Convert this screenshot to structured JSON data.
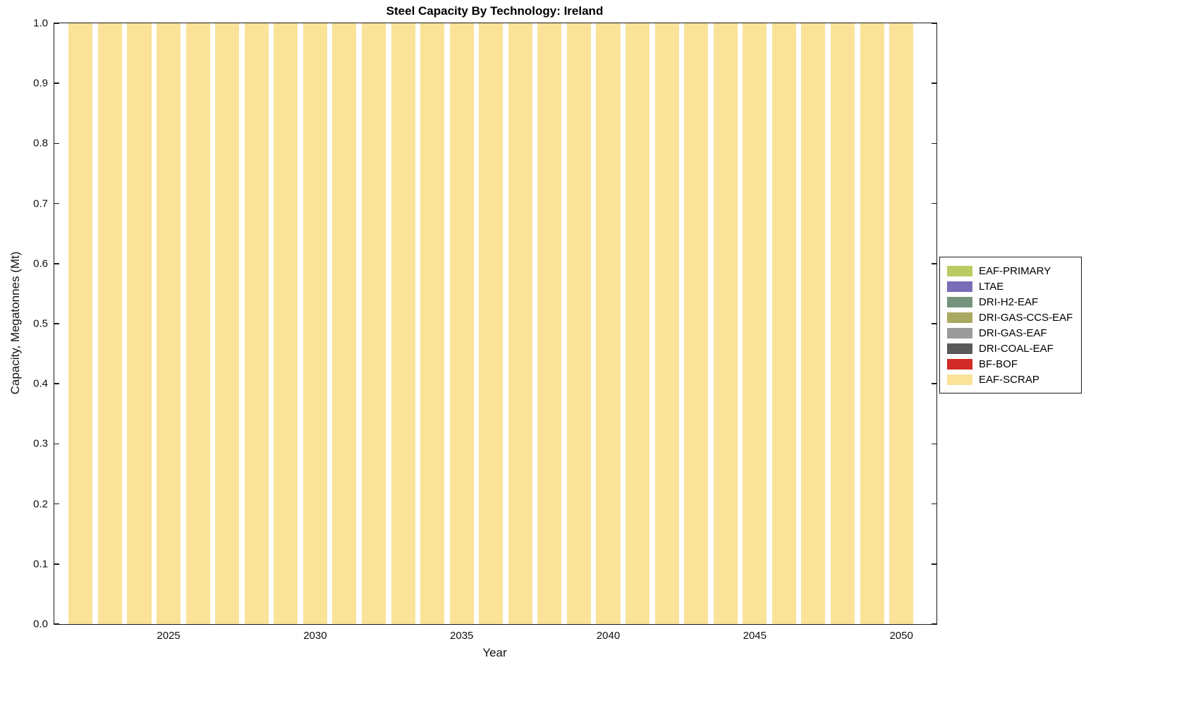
{
  "chart_data": {
    "type": "bar",
    "stacked": true,
    "title": "Steel Capacity By Technology: Ireland",
    "xlabel": "Year",
    "ylabel": "Capacity, Megatonnes (Mt)",
    "grid": false,
    "legend_position": "right-outside",
    "bar_width": 0.82,
    "xlim": [
      2021.1,
      2051.2
    ],
    "ylim": [
      0,
      1
    ],
    "x": [
      2022,
      2023,
      2024,
      2025,
      2026,
      2027,
      2028,
      2029,
      2030,
      2031,
      2032,
      2033,
      2034,
      2035,
      2036,
      2037,
      2038,
      2039,
      2040,
      2041,
      2042,
      2043,
      2044,
      2045,
      2046,
      2047,
      2048,
      2049,
      2050
    ],
    "xticks": [
      {
        "value": 2025,
        "label": "2025"
      },
      {
        "value": 2030,
        "label": "2030"
      },
      {
        "value": 2035,
        "label": "2035"
      },
      {
        "value": 2040,
        "label": "2040"
      },
      {
        "value": 2045,
        "label": "2045"
      },
      {
        "value": 2050,
        "label": "2050"
      }
    ],
    "yticks": [
      {
        "value": 0.0,
        "label": "0.0"
      },
      {
        "value": 0.1,
        "label": "0.1"
      },
      {
        "value": 0.2,
        "label": "0.2"
      },
      {
        "value": 0.3,
        "label": "0.3"
      },
      {
        "value": 0.4,
        "label": "0.4"
      },
      {
        "value": 0.5,
        "label": "0.5"
      },
      {
        "value": 0.6,
        "label": "0.6"
      },
      {
        "value": 0.7,
        "label": "0.7"
      },
      {
        "value": 0.8,
        "label": "0.8"
      },
      {
        "value": 0.9,
        "label": "0.9"
      },
      {
        "value": 1.0,
        "label": "1.0"
      }
    ],
    "series": [
      {
        "name": "EAF-PRIMARY",
        "color": "#b8cc63",
        "values": [
          0,
          0,
          0,
          0,
          0,
          0,
          0,
          0,
          0,
          0,
          0,
          0,
          0,
          0,
          0,
          0,
          0,
          0,
          0,
          0,
          0,
          0,
          0,
          0,
          0,
          0,
          0,
          0,
          0
        ]
      },
      {
        "name": "LTAE",
        "color": "#7a6db8",
        "values": [
          0,
          0,
          0,
          0,
          0,
          0,
          0,
          0,
          0,
          0,
          0,
          0,
          0,
          0,
          0,
          0,
          0,
          0,
          0,
          0,
          0,
          0,
          0,
          0,
          0,
          0,
          0,
          0,
          0
        ]
      },
      {
        "name": "DRI-H2-EAF",
        "color": "#74937c",
        "values": [
          0,
          0,
          0,
          0,
          0,
          0,
          0,
          0,
          0,
          0,
          0,
          0,
          0,
          0,
          0,
          0,
          0,
          0,
          0,
          0,
          0,
          0,
          0,
          0,
          0,
          0,
          0,
          0,
          0
        ]
      },
      {
        "name": "DRI-GAS-CCS-EAF",
        "color": "#aaa961",
        "values": [
          0,
          0,
          0,
          0,
          0,
          0,
          0,
          0,
          0,
          0,
          0,
          0,
          0,
          0,
          0,
          0,
          0,
          0,
          0,
          0,
          0,
          0,
          0,
          0,
          0,
          0,
          0,
          0,
          0
        ]
      },
      {
        "name": "DRI-GAS-EAF",
        "color": "#9a9a9a",
        "values": [
          0,
          0,
          0,
          0,
          0,
          0,
          0,
          0,
          0,
          0,
          0,
          0,
          0,
          0,
          0,
          0,
          0,
          0,
          0,
          0,
          0,
          0,
          0,
          0,
          0,
          0,
          0,
          0,
          0
        ]
      },
      {
        "name": "DRI-COAL-EAF",
        "color": "#595959",
        "values": [
          0,
          0,
          0,
          0,
          0,
          0,
          0,
          0,
          0,
          0,
          0,
          0,
          0,
          0,
          0,
          0,
          0,
          0,
          0,
          0,
          0,
          0,
          0,
          0,
          0,
          0,
          0,
          0,
          0
        ]
      },
      {
        "name": "BF-BOF",
        "color": "#d22b27",
        "values": [
          0,
          0,
          0,
          0,
          0,
          0,
          0,
          0,
          0,
          0,
          0,
          0,
          0,
          0,
          0,
          0,
          0,
          0,
          0,
          0,
          0,
          0,
          0,
          0,
          0,
          0,
          0,
          0,
          0
        ]
      },
      {
        "name": "EAF-SCRAP",
        "color": "#fae298",
        "values": [
          1,
          1,
          1,
          1,
          1,
          1,
          1,
          1,
          1,
          1,
          1,
          1,
          1,
          1,
          1,
          1,
          1,
          1,
          1,
          1,
          1,
          1,
          1,
          1,
          1,
          1,
          1,
          1,
          1
        ]
      }
    ]
  }
}
